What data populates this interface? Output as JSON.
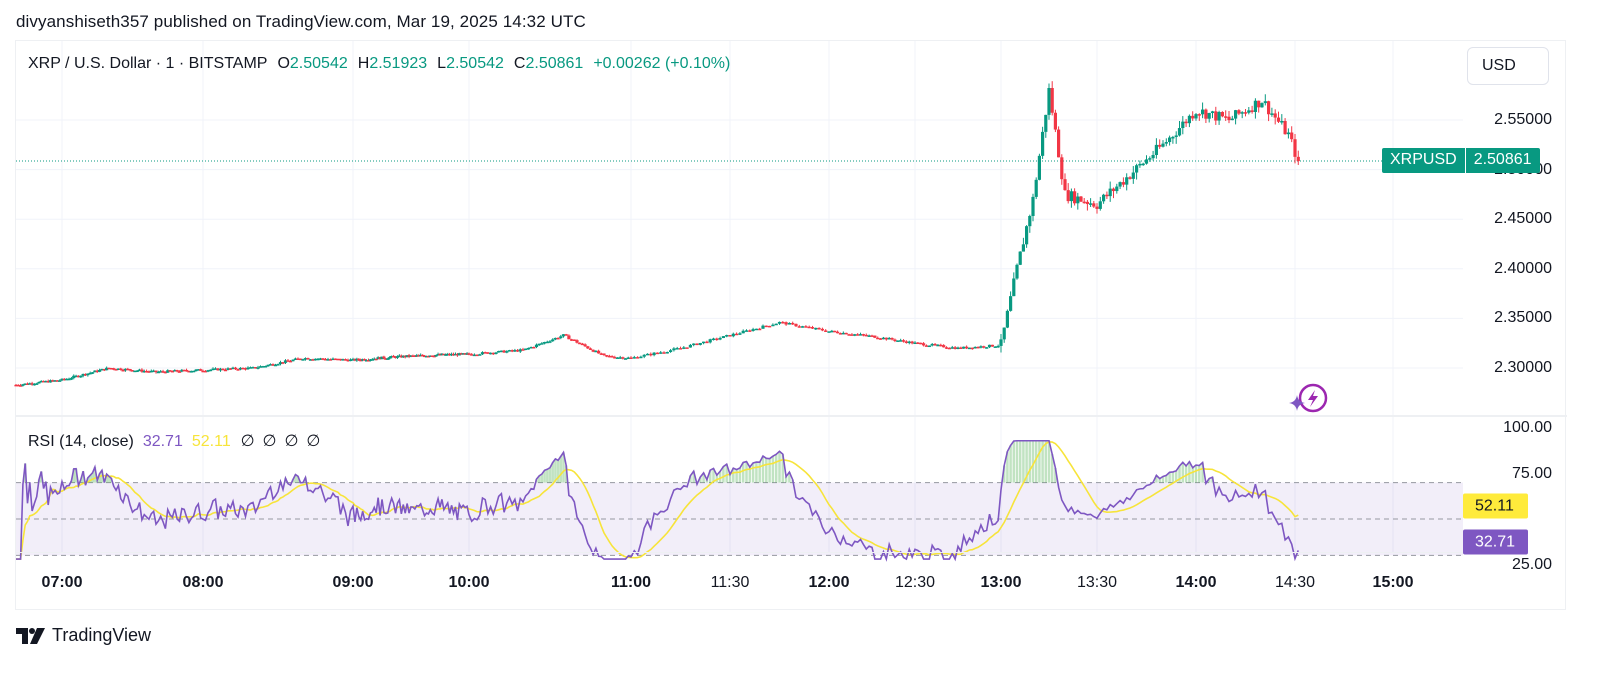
{
  "header": {
    "publisher_line": "divyanshiseth357 published on TradingView.com, Mar 19, 2025 14:32 UTC"
  },
  "legend": {
    "symbol": "XRP / U.S. Dollar · 1 · BITSTAMP",
    "open_key": "O",
    "open": "2.50542",
    "high_key": "H",
    "high": "2.51923",
    "low_key": "L",
    "low": "2.50542",
    "close_key": "C",
    "close": "2.50861",
    "change": "+0.00262 (+0.10%)"
  },
  "toolbar": {
    "currency": "USD"
  },
  "price_tag": {
    "symbol": "XRPUSD",
    "value": "2.50861"
  },
  "rsi_legend": {
    "name": "RSI (14, close)",
    "rsi_value": "32.71",
    "ma_value": "52.11",
    "na_values": [
      "∅",
      "∅",
      "∅",
      "∅"
    ]
  },
  "rsi_tags": {
    "ma": "52.11",
    "rsi": "32.71"
  },
  "footer": {
    "brand": "TradingView"
  },
  "colors": {
    "up": "#089981",
    "down": "#f23645",
    "rsi_line": "#7e57c2",
    "rsi_ma": "#f7e43a",
    "rsi_band": "#7e57c2",
    "grid": "#f0f3fa"
  },
  "chart_data": [
    {
      "type": "candlestick",
      "title": "XRP / U.S. Dollar · 1 · BITSTAMP",
      "ylabel": "USD",
      "ylim": [
        2.27,
        2.605
      ],
      "y_ticks": [
        "2.30000",
        "2.35000",
        "2.40000",
        "2.45000",
        "2.50000",
        "2.55000"
      ],
      "x_ticks": [
        {
          "label": "07:00",
          "major": true
        },
        {
          "label": "08:00",
          "major": true
        },
        {
          "label": "09:00",
          "major": true
        },
        {
          "label": "10:00",
          "major": true
        },
        {
          "label": "11:00",
          "major": true
        },
        {
          "label": "11:30",
          "major": false
        },
        {
          "label": "12:00",
          "major": true
        },
        {
          "label": "12:30",
          "major": false
        },
        {
          "label": "13:00",
          "major": true
        },
        {
          "label": "13:30",
          "major": false
        },
        {
          "label": "14:00",
          "major": true
        },
        {
          "label": "14:30",
          "major": false
        },
        {
          "label": "15:00",
          "major": true
        }
      ],
      "last_price": 2.50861,
      "series_close_approx": [
        {
          "t": "06:40",
          "close": 2.283
        },
        {
          "t": "07:00",
          "close": 2.288
        },
        {
          "t": "07:20",
          "close": 2.3
        },
        {
          "t": "07:40",
          "close": 2.296
        },
        {
          "t": "08:00",
          "close": 2.298
        },
        {
          "t": "08:20",
          "close": 2.3
        },
        {
          "t": "08:40",
          "close": 2.31
        },
        {
          "t": "09:00",
          "close": 2.308
        },
        {
          "t": "09:20",
          "close": 2.311
        },
        {
          "t": "09:40",
          "close": 2.313
        },
        {
          "t": "10:00",
          "close": 2.314
        },
        {
          "t": "10:20",
          "close": 2.318
        },
        {
          "t": "10:35",
          "close": 2.333
        },
        {
          "t": "10:50",
          "close": 2.312
        },
        {
          "t": "11:00",
          "close": 2.31
        },
        {
          "t": "11:15",
          "close": 2.32
        },
        {
          "t": "11:30",
          "close": 2.333
        },
        {
          "t": "11:45",
          "close": 2.346
        },
        {
          "t": "12:00",
          "close": 2.337
        },
        {
          "t": "12:15",
          "close": 2.332
        },
        {
          "t": "12:30",
          "close": 2.325
        },
        {
          "t": "12:45",
          "close": 2.32
        },
        {
          "t": "13:00",
          "close": 2.323
        },
        {
          "t": "13:05",
          "close": 2.4
        },
        {
          "t": "13:10",
          "close": 2.47
        },
        {
          "t": "13:15",
          "close": 2.58
        },
        {
          "t": "13:20",
          "close": 2.475
        },
        {
          "t": "13:30",
          "close": 2.465
        },
        {
          "t": "13:40",
          "close": 2.495
        },
        {
          "t": "13:50",
          "close": 2.525
        },
        {
          "t": "14:00",
          "close": 2.56
        },
        {
          "t": "14:10",
          "close": 2.55
        },
        {
          "t": "14:20",
          "close": 2.57
        },
        {
          "t": "14:28",
          "close": 2.535
        },
        {
          "t": "14:31",
          "close": 2.50861
        }
      ]
    },
    {
      "type": "line",
      "title": "RSI (14, close)",
      "ylim": [
        22,
        102
      ],
      "y_ticks": [
        "25.00",
        "75.00",
        "100.00"
      ],
      "bands": {
        "upper": 70,
        "middle": 50,
        "lower": 30
      },
      "series": [
        {
          "name": "RSI",
          "last": 32.71
        },
        {
          "name": "RSI-based MA",
          "last": 52.11
        }
      ]
    }
  ]
}
